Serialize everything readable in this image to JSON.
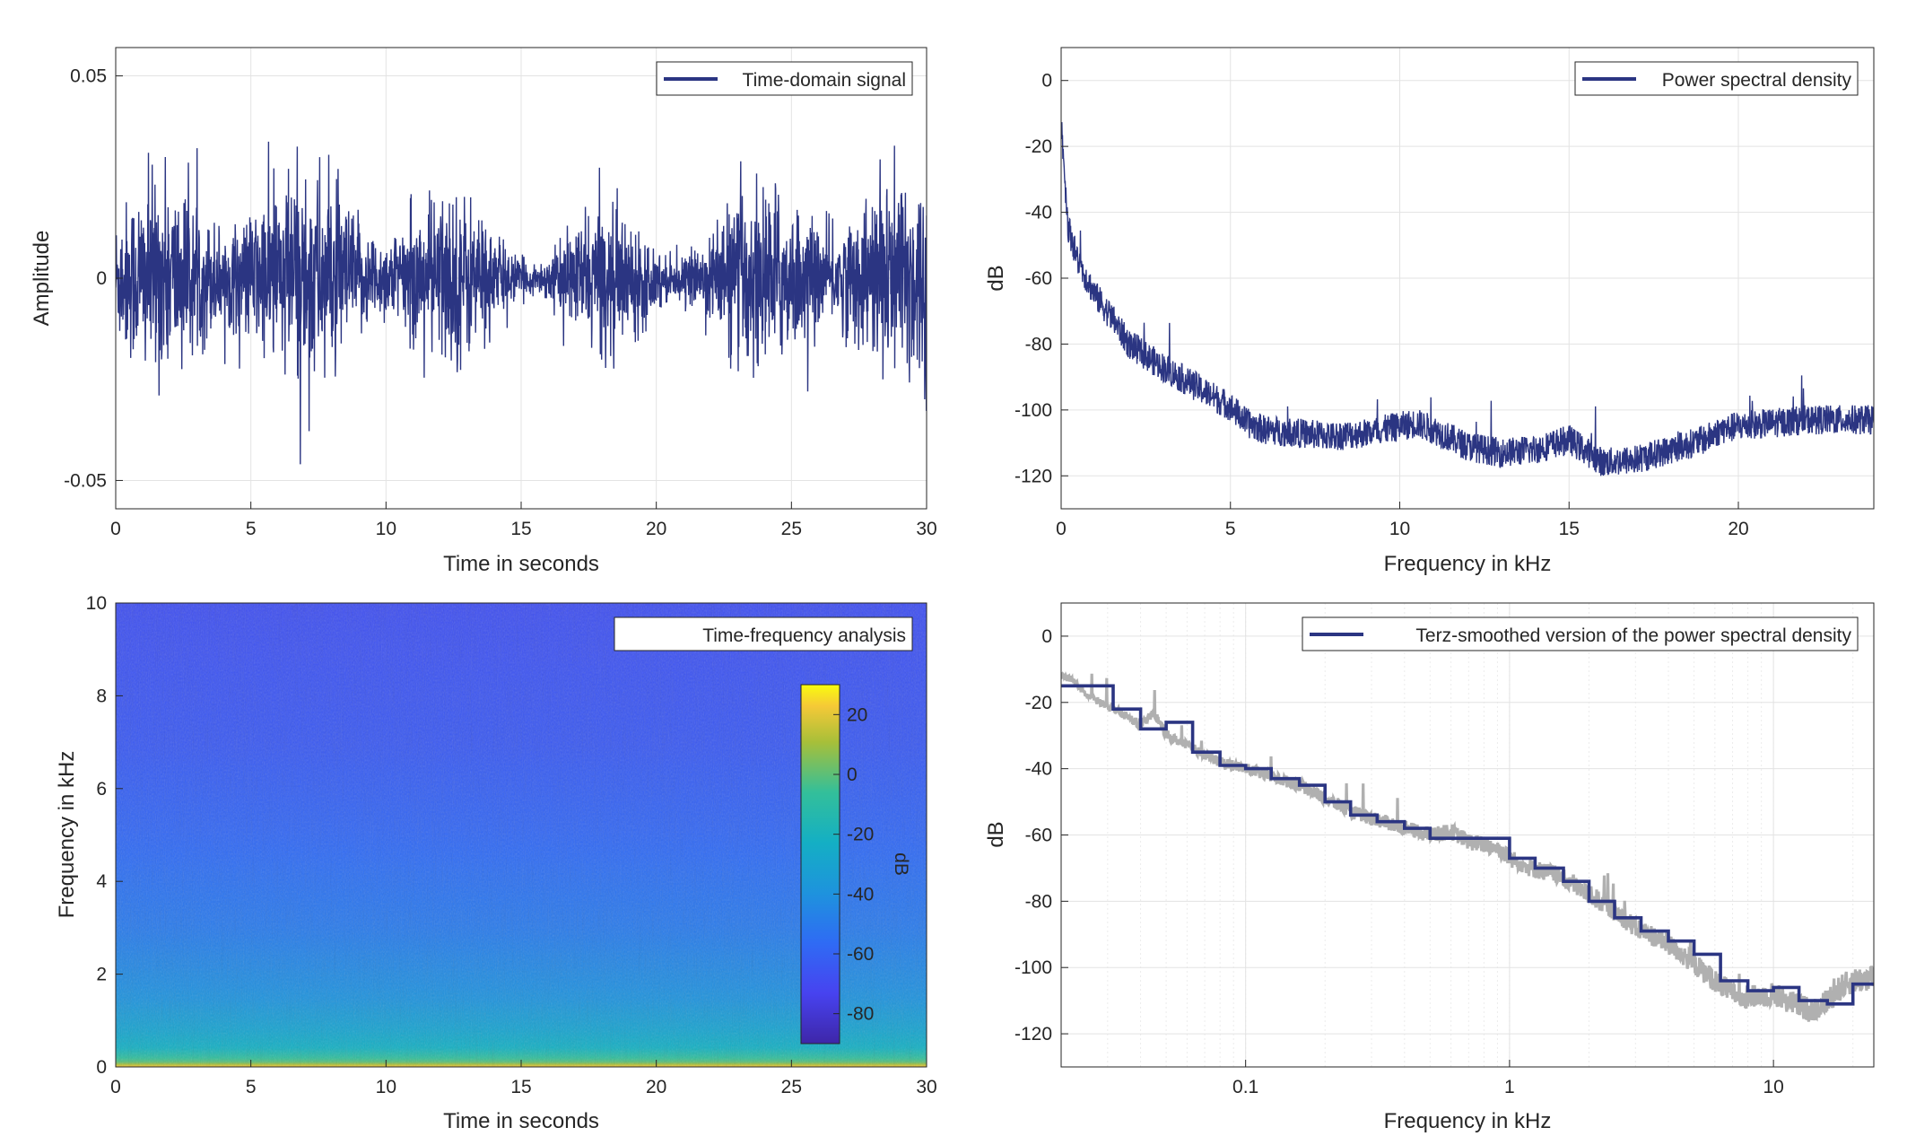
{
  "colors": {
    "series": "#2b3582",
    "raw": "#b0b0b0",
    "grid": "#e3e3e3",
    "axis": "#262626"
  },
  "chart_data": [
    {
      "type": "line",
      "legend": "Time-domain signal",
      "legend_placement": "top-right",
      "xlabel": "Time in seconds",
      "ylabel": "Amplitude",
      "xlim": [
        0,
        30
      ],
      "ylim": [
        -0.057,
        0.057
      ],
      "xticks": [
        0,
        5,
        10,
        15,
        20,
        25,
        30
      ],
      "xtick_labels": [
        "0",
        "5",
        "10",
        "15",
        "20",
        "25",
        "30"
      ],
      "yticks": [
        -0.05,
        0,
        0.05
      ],
      "ytick_labels": [
        "-0.05",
        "0",
        "0.05"
      ],
      "grid": true,
      "series": [
        {
          "name": "Time-domain signal",
          "x_range": [
            0,
            30
          ],
          "typical_range": [
            -0.02,
            0.02
          ],
          "peak_max": 0.046,
          "peak_min": -0.046
        }
      ]
    },
    {
      "type": "line",
      "legend": "Power spectral density",
      "legend_placement": "top-right",
      "xlabel": "Frequency in kHz",
      "ylabel": "dB",
      "xlim": [
        0,
        24
      ],
      "ylim": [
        -130,
        10
      ],
      "xticks": [
        0,
        5,
        10,
        15,
        20
      ],
      "xtick_labels": [
        "0",
        "5",
        "10",
        "15",
        "20"
      ],
      "yticks": [
        0,
        -20,
        -40,
        -60,
        -80,
        -100,
        -120
      ],
      "ytick_labels": [
        "0",
        "-20",
        "-40",
        "-60",
        "-80",
        "-100",
        "-120"
      ],
      "grid": true,
      "series": [
        {
          "name": "Power spectral density",
          "x": [
            0,
            0.05,
            0.2,
            0.5,
            1,
            1.5,
            2,
            3,
            4,
            5,
            5.5,
            6,
            7,
            8,
            9,
            10,
            10.5,
            11,
            12,
            13,
            14,
            15,
            16,
            17,
            18,
            19,
            19.5,
            20,
            21,
            22,
            23,
            24
          ],
          "y": [
            -12,
            -20,
            -44,
            -55,
            -65,
            -72,
            -80,
            -87,
            -93,
            -99,
            -104,
            -106,
            -107,
            -108,
            -107,
            -105,
            -104,
            -106,
            -111,
            -113,
            -112,
            -109,
            -116,
            -115,
            -112,
            -109,
            -106,
            -105,
            -104,
            -103,
            -103,
            -103
          ]
        }
      ]
    },
    {
      "type": "heatmap",
      "legend": "Time-frequency analysis",
      "legend_placement": "top-right",
      "xlabel": "Time in seconds",
      "ylabel": "Frequency in kHz",
      "xlim": [
        0,
        30
      ],
      "ylim": [
        0,
        10
      ],
      "xticks": [
        0,
        5,
        10,
        15,
        20,
        25,
        30
      ],
      "xtick_labels": [
        "0",
        "5",
        "10",
        "15",
        "20",
        "25",
        "30"
      ],
      "yticks": [
        0,
        2,
        4,
        6,
        8,
        10
      ],
      "ytick_labels": [
        "0",
        "2",
        "4",
        "6",
        "8",
        "10"
      ],
      "colorbar": {
        "label": "dB",
        "range": [
          -90,
          30
        ],
        "ticks": [
          20,
          0,
          -20,
          -40,
          -60,
          -80
        ],
        "tick_labels": [
          "20",
          "0",
          "-20",
          "-40",
          "-60",
          "-80"
        ]
      },
      "frequency_profile": {
        "freq_khz": [
          0,
          0.1,
          0.4,
          0.8,
          1.5,
          3,
          5,
          7,
          10
        ],
        "level_db": [
          25,
          0,
          -22,
          -30,
          -40,
          -50,
          -58,
          -64,
          -68
        ]
      }
    },
    {
      "type": "line",
      "legend": "Terz-smoothed version of the power spectral density",
      "legend_placement": "top-right",
      "xlabel": "Frequency in kHz",
      "ylabel": "dB",
      "xscale": "log",
      "xlim": [
        0.02,
        24
      ],
      "ylim": [
        -130,
        10
      ],
      "xticks": [
        0.1,
        1,
        10
      ],
      "xtick_labels": [
        "0.1",
        "1",
        "10"
      ],
      "yticks": [
        0,
        -20,
        -40,
        -60,
        -80,
        -100,
        -120
      ],
      "ytick_labels": [
        "0",
        "-20",
        "-40",
        "-60",
        "-80",
        "-100",
        "-120"
      ],
      "grid": true,
      "series": [
        {
          "name": "Terz-smoothed version of the power spectral density",
          "bands_khz": [
            0.02,
            0.025,
            0.0315,
            0.04,
            0.05,
            0.063,
            0.08,
            0.1,
            0.125,
            0.16,
            0.2,
            0.25,
            0.315,
            0.4,
            0.5,
            0.63,
            0.8,
            1,
            1.25,
            1.6,
            2,
            2.5,
            3.15,
            4,
            5,
            6.3,
            8,
            10,
            12.5,
            16,
            20
          ],
          "levels_db": [
            -15,
            -15,
            -22,
            -28,
            -26,
            -35,
            -39,
            -40,
            -43,
            -45,
            -50,
            -54,
            -56,
            -58,
            -61,
            -61,
            -61,
            -67,
            -70,
            -74,
            -80,
            -85,
            -89,
            -92,
            -96,
            -104,
            -107,
            -106,
            -110,
            -111,
            -105
          ]
        },
        {
          "name": "",
          "x": [
            0.02,
            0.022,
            0.025,
            0.03,
            0.035,
            0.04,
            0.045,
            0.05,
            0.06,
            0.07,
            0.08,
            0.1,
            0.13,
            0.16,
            0.2,
            0.25,
            0.3,
            0.4,
            0.5,
            0.6,
            0.7,
            0.8,
            0.9,
            1,
            1.2,
            1.5,
            2,
            2.5,
            3,
            4,
            5,
            6,
            7,
            8,
            10,
            12,
            14,
            16,
            18,
            20,
            24
          ],
          "y": [
            -12,
            -13,
            -18,
            -21,
            -24,
            -27,
            -23,
            -30,
            -33,
            -36,
            -38,
            -40,
            -43,
            -45,
            -49,
            -53,
            -55,
            -58,
            -60,
            -59,
            -62,
            -63,
            -64,
            -67,
            -70,
            -72,
            -78,
            -83,
            -88,
            -93,
            -99,
            -104,
            -108,
            -109,
            -108,
            -111,
            -113,
            -110,
            -106,
            -104,
            -103
          ]
        }
      ]
    }
  ]
}
